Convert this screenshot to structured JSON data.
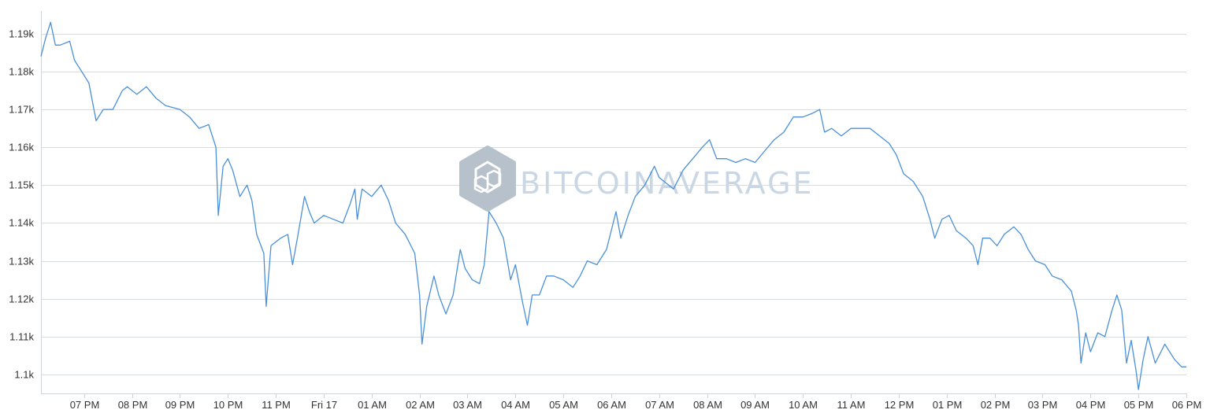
{
  "chart_data": {
    "type": "line",
    "title": "",
    "xlabel": "",
    "ylabel": "",
    "ylim": [
      1095,
      1196
    ],
    "y_ticks": [
      1100,
      1110,
      1120,
      1130,
      1140,
      1150,
      1160,
      1170,
      1180,
      1190
    ],
    "y_tick_labels": [
      "1.1k",
      "1.11k",
      "1.12k",
      "1.13k",
      "1.14k",
      "1.15k",
      "1.16k",
      "1.17k",
      "1.18k",
      "1.19k"
    ],
    "x_range_hours": [
      18.1,
      42.0
    ],
    "x_ticks": [
      19,
      20,
      21,
      22,
      23,
      24,
      25,
      26,
      27,
      28,
      29,
      30,
      31,
      32,
      33,
      34,
      35,
      36,
      37,
      38,
      39,
      40,
      41,
      42
    ],
    "x_tick_labels": [
      "07 PM",
      "08 PM",
      "09 PM",
      "10 PM",
      "11 PM",
      "Fri 17",
      "01 AM",
      "02 AM",
      "03 AM",
      "04 AM",
      "05 AM",
      "06 AM",
      "07 AM",
      "08 AM",
      "09 AM",
      "10 AM",
      "11 AM",
      "12 PM",
      "01 PM",
      "02 PM",
      "03 PM",
      "04 PM",
      "05 PM",
      "06 PM"
    ],
    "grid": true,
    "line_color": "#4a90d9",
    "series": [
      {
        "values": [
          [
            18.1,
            1184
          ],
          [
            18.2,
            1189
          ],
          [
            18.3,
            1193
          ],
          [
            18.4,
            1187
          ],
          [
            18.5,
            1187
          ],
          [
            18.7,
            1188
          ],
          [
            18.8,
            1183
          ],
          [
            18.9,
            1181
          ],
          [
            19.1,
            1177
          ],
          [
            19.25,
            1167
          ],
          [
            19.4,
            1170
          ],
          [
            19.6,
            1170
          ],
          [
            19.8,
            1175
          ],
          [
            19.9,
            1176
          ],
          [
            20.1,
            1174
          ],
          [
            20.3,
            1176
          ],
          [
            20.5,
            1173
          ],
          [
            20.7,
            1171
          ],
          [
            21.0,
            1170
          ],
          [
            21.2,
            1168
          ],
          [
            21.4,
            1165
          ],
          [
            21.6,
            1166
          ],
          [
            21.75,
            1160
          ],
          [
            21.8,
            1142
          ],
          [
            21.9,
            1155
          ],
          [
            22.0,
            1157
          ],
          [
            22.1,
            1154
          ],
          [
            22.25,
            1147
          ],
          [
            22.4,
            1150
          ],
          [
            22.5,
            1146
          ],
          [
            22.6,
            1137
          ],
          [
            22.75,
            1132
          ],
          [
            22.8,
            1118
          ],
          [
            22.9,
            1134
          ],
          [
            23.1,
            1136
          ],
          [
            23.25,
            1137
          ],
          [
            23.35,
            1129
          ],
          [
            23.45,
            1136
          ],
          [
            23.6,
            1147
          ],
          [
            23.7,
            1143
          ],
          [
            23.8,
            1140
          ],
          [
            24.0,
            1142
          ],
          [
            24.2,
            1141
          ],
          [
            24.4,
            1140
          ],
          [
            24.55,
            1145
          ],
          [
            24.65,
            1149
          ],
          [
            24.7,
            1141
          ],
          [
            24.8,
            1149
          ],
          [
            25.0,
            1147
          ],
          [
            25.2,
            1150
          ],
          [
            25.35,
            1146
          ],
          [
            25.5,
            1140
          ],
          [
            25.7,
            1137
          ],
          [
            25.9,
            1132
          ],
          [
            26.0,
            1121
          ],
          [
            26.05,
            1108
          ],
          [
            26.15,
            1118
          ],
          [
            26.3,
            1126
          ],
          [
            26.4,
            1121
          ],
          [
            26.55,
            1116
          ],
          [
            26.7,
            1121
          ],
          [
            26.85,
            1133
          ],
          [
            26.95,
            1128
          ],
          [
            27.1,
            1125
          ],
          [
            27.25,
            1124
          ],
          [
            27.35,
            1129
          ],
          [
            27.45,
            1143
          ],
          [
            27.6,
            1140
          ],
          [
            27.75,
            1136
          ],
          [
            27.9,
            1125
          ],
          [
            28.0,
            1129
          ],
          [
            28.15,
            1119
          ],
          [
            28.25,
            1113
          ],
          [
            28.35,
            1121
          ],
          [
            28.5,
            1121
          ],
          [
            28.65,
            1126
          ],
          [
            28.8,
            1126
          ],
          [
            29.0,
            1125
          ],
          [
            29.2,
            1123
          ],
          [
            29.35,
            1126
          ],
          [
            29.5,
            1130
          ],
          [
            29.7,
            1129
          ],
          [
            29.9,
            1133
          ],
          [
            30.1,
            1143
          ],
          [
            30.2,
            1136
          ],
          [
            30.35,
            1142
          ],
          [
            30.5,
            1147
          ],
          [
            30.7,
            1150
          ],
          [
            30.9,
            1155
          ],
          [
            31.0,
            1152
          ],
          [
            31.1,
            1151
          ],
          [
            31.3,
            1149
          ],
          [
            31.5,
            1154
          ],
          [
            31.7,
            1157
          ],
          [
            31.9,
            1160
          ],
          [
            32.05,
            1162
          ],
          [
            32.2,
            1157
          ],
          [
            32.4,
            1157
          ],
          [
            32.6,
            1156
          ],
          [
            32.8,
            1157
          ],
          [
            33.0,
            1156
          ],
          [
            33.2,
            1159
          ],
          [
            33.4,
            1162
          ],
          [
            33.6,
            1164
          ],
          [
            33.8,
            1168
          ],
          [
            34.0,
            1168
          ],
          [
            34.2,
            1169
          ],
          [
            34.35,
            1170
          ],
          [
            34.45,
            1164
          ],
          [
            34.6,
            1165
          ],
          [
            34.8,
            1163
          ],
          [
            35.0,
            1165
          ],
          [
            35.2,
            1165
          ],
          [
            35.4,
            1165
          ],
          [
            35.6,
            1163
          ],
          [
            35.8,
            1161
          ],
          [
            35.95,
            1158
          ],
          [
            36.1,
            1153
          ],
          [
            36.3,
            1151
          ],
          [
            36.5,
            1147
          ],
          [
            36.65,
            1141
          ],
          [
            36.75,
            1136
          ],
          [
            36.9,
            1141
          ],
          [
            37.05,
            1142
          ],
          [
            37.2,
            1138
          ],
          [
            37.4,
            1136
          ],
          [
            37.55,
            1134
          ],
          [
            37.65,
            1129
          ],
          [
            37.75,
            1136
          ],
          [
            37.9,
            1136
          ],
          [
            38.05,
            1134
          ],
          [
            38.2,
            1137
          ],
          [
            38.4,
            1139
          ],
          [
            38.55,
            1137
          ],
          [
            38.7,
            1133
          ],
          [
            38.85,
            1130
          ],
          [
            39.05,
            1129
          ],
          [
            39.2,
            1126
          ],
          [
            39.4,
            1125
          ],
          [
            39.6,
            1122
          ],
          [
            39.7,
            1117
          ],
          [
            39.75,
            1113
          ],
          [
            39.8,
            1103
          ],
          [
            39.9,
            1111
          ],
          [
            40.0,
            1106
          ],
          [
            40.15,
            1111
          ],
          [
            40.3,
            1110
          ],
          [
            40.45,
            1117
          ],
          [
            40.55,
            1121
          ],
          [
            40.65,
            1117
          ],
          [
            40.75,
            1103
          ],
          [
            40.85,
            1109
          ],
          [
            40.95,
            1101
          ],
          [
            41.0,
            1096
          ],
          [
            41.1,
            1104
          ],
          [
            41.2,
            1110
          ],
          [
            41.35,
            1103
          ],
          [
            41.55,
            1108
          ],
          [
            41.75,
            1104
          ],
          [
            41.9,
            1102
          ],
          [
            42.0,
            1102
          ]
        ]
      }
    ]
  },
  "watermark": {
    "text": "BITCOINAVERAGE",
    "color": "#c9d7e4",
    "logo_color": "#b7c1cb",
    "icon": "hexagon-logo-icon"
  }
}
